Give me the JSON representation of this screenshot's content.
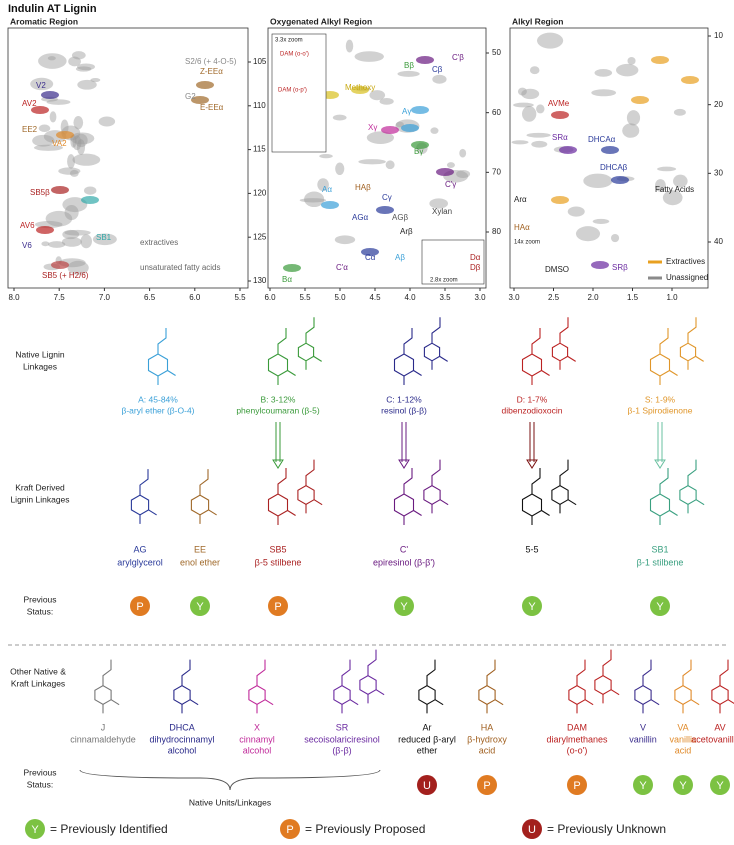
{
  "title": "Indulin AT Lignin",
  "spectra": [
    {
      "title": "Aromatic Region",
      "x_ticks": [
        "8.0",
        "7.5",
        "7.0",
        "6.5",
        "6.0",
        "5.5"
      ],
      "y_ticks": [
        105,
        110,
        115,
        120,
        125,
        130
      ],
      "labels": [
        "S2/6 (+ 4-O-5)",
        "G2",
        "Z-EEα",
        "E-EEα",
        "V2",
        "AV2",
        "EE2",
        "VA2",
        "SB5β",
        "AV6",
        "V6",
        "SB1",
        "extractives",
        "SB5 (+ H2/6)",
        "unsaturated fatty acids"
      ]
    },
    {
      "title": "Oxygenated Alkyl Region",
      "x_ticks": [
        "6.0",
        "5.5",
        "5.0",
        "4.5",
        "4.0",
        "3.5",
        "3.0"
      ],
      "y_ticks": [
        50,
        60,
        70,
        80
      ],
      "labels": [
        "C'β",
        "Cβ",
        "Bβ",
        "Methoxy",
        "Aγ",
        "Xγ",
        "Bγ",
        "C'γ",
        "HAβ",
        "Cγ",
        "Aα",
        "AGα",
        "AGβ",
        "Xylan",
        "Arβ",
        "Cα",
        "Aβ",
        "C'α",
        "Bα",
        "Dα",
        "Dβ",
        "3.3x zoom",
        "DAM (o-o')",
        "DAM (o-p')",
        "2.8x zoom"
      ]
    },
    {
      "title": "Alkyl Region",
      "x_ticks": [
        "3.0",
        "2.5",
        "2.0",
        "1.5",
        "1.0"
      ],
      "y_ticks": [
        10,
        20,
        30,
        40
      ],
      "labels": [
        "AVMe",
        "SRα",
        "DHCAα",
        "DHCAβ",
        "Fatty Acids",
        "Arα",
        "HAα",
        "DMSO",
        "SRβ",
        "14x zoom"
      ]
    }
  ],
  "spectra_legend": [
    "Extractives",
    "Unassigned"
  ],
  "native": {
    "row_label": [
      "Native Lignin",
      "Linkages"
    ],
    "items": [
      {
        "code": "A: 45-84%",
        "name": "β-aryl ether (β-O-4)"
      },
      {
        "code": "B: 3-12%",
        "name": "phenylcoumaran (β-5)"
      },
      {
        "code": "C: 1-12%",
        "name": "resinol (β-β)"
      },
      {
        "code": "D: 1-7%",
        "name": "dibenzodioxocin"
      },
      {
        "code": "S: 1-9%",
        "name": "β-1 Spirodienone"
      }
    ]
  },
  "kraft": {
    "row_label": [
      "Kraft Derived",
      "Lignin Linkages"
    ],
    "items": [
      {
        "code": "AG",
        "name": "arylglycerol"
      },
      {
        "code": "EE",
        "name": "enol ether"
      },
      {
        "code": "SB5",
        "name": "β-5 stilbene"
      },
      {
        "code": "C'",
        "name": "epiresinol (β-β')"
      },
      {
        "code": "5-5"
      },
      {
        "code": "SB1",
        "name": "β-1 stilbene"
      }
    ]
  },
  "status_label_1": [
    "Previous",
    "Status:"
  ],
  "status_1": [
    "P",
    "Y",
    "P",
    "Y",
    "Y",
    "Y"
  ],
  "other": {
    "row_label": [
      "Other Native &",
      "Kraft Linkages"
    ],
    "items": [
      {
        "code": "J",
        "name": [
          "cinnamaldehyde"
        ]
      },
      {
        "code": "DHCA",
        "name": [
          "dihydrocinnamyl",
          "alcohol"
        ]
      },
      {
        "code": "X",
        "name": [
          "cinnamyl",
          "alcohol"
        ]
      },
      {
        "code": "SR",
        "name": [
          "secoisolariciresinol",
          "(β-β)"
        ]
      },
      {
        "code": "Ar",
        "name": [
          "reduced β-aryl",
          "ether"
        ]
      },
      {
        "code": "HA",
        "name": [
          "β-hydroxy",
          "acid"
        ]
      },
      {
        "code": "DAM",
        "name": [
          "diarylmethanes",
          "(o-o')"
        ]
      },
      {
        "code": "V",
        "name": [
          "vanillin"
        ]
      },
      {
        "code": "VA",
        "name": [
          "vanillic",
          "acid"
        ]
      },
      {
        "code": "AV",
        "name": [
          "acetovanillone"
        ]
      }
    ]
  },
  "status_label_2": [
    "Previous",
    "Status:"
  ],
  "status_2": [
    "U",
    "P",
    "P",
    "Y",
    "Y",
    "Y"
  ],
  "native_units": "Native Units/Linkages",
  "legend": [
    {
      "badge": "Y",
      "text": "= Previously Identified"
    },
    {
      "badge": "P",
      "text": "= Previously Proposed"
    },
    {
      "badge": "U",
      "text": "= Previously Unknown"
    }
  ]
}
